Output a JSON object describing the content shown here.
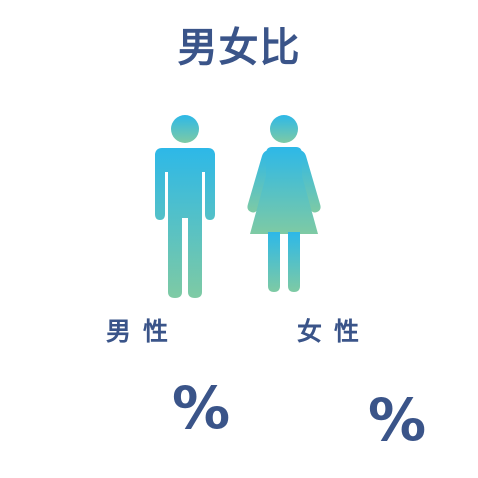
{
  "title": "男女比",
  "colors": {
    "text": "#3a5489",
    "gradient_top": "#2db8e8",
    "gradient_bottom": "#7ecaa4"
  },
  "male": {
    "icon": "male-person-icon",
    "label": "男性",
    "percent_symbol": "%"
  },
  "female": {
    "icon": "female-person-icon",
    "label": "女性",
    "percent_symbol": "%"
  }
}
